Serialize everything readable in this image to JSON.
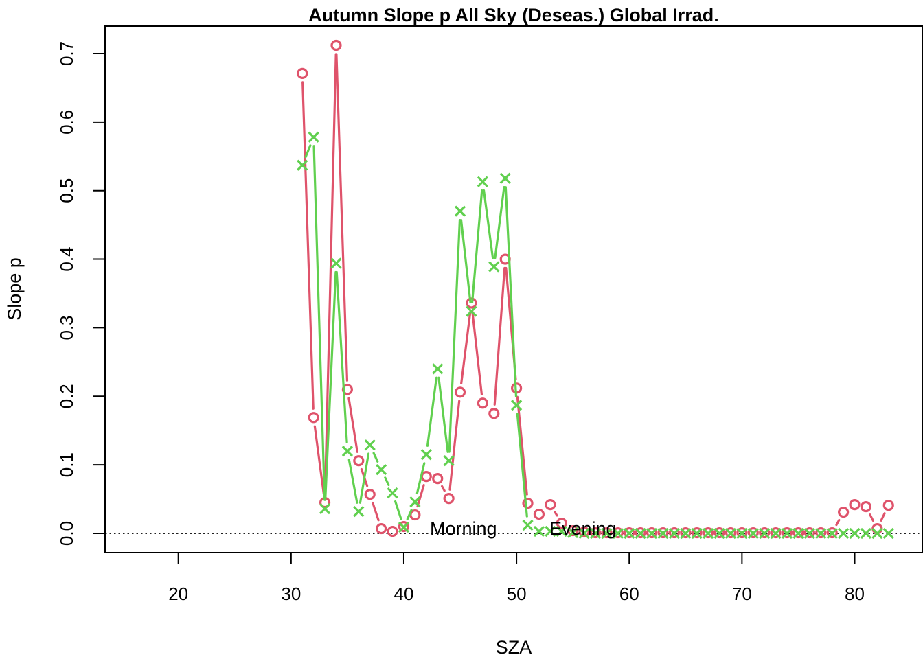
{
  "chart_data": {
    "type": "line",
    "title": "Autumn Slope p All Sky (Deseas.) Global Irrad.",
    "xlabel": "SZA",
    "ylabel": "Slope p",
    "xlim": [
      13.5,
      86
    ],
    "ylim": [
      -0.028,
      0.74
    ],
    "xticks": [
      20,
      30,
      40,
      50,
      60,
      70,
      80
    ],
    "yticks": [
      0.0,
      0.1,
      0.2,
      0.3,
      0.4,
      0.5,
      0.6,
      0.7
    ],
    "ytick_labels": [
      "0.0",
      "0.1",
      "0.2",
      "0.3",
      "0.4",
      "0.5",
      "0.6",
      "0.7"
    ],
    "reference_line": {
      "y": 0,
      "style": "dotted",
      "color": "#000000"
    },
    "legend": {
      "placement": "bottom-center",
      "entries": [
        "Morning",
        "Evening"
      ]
    },
    "series": [
      {
        "name": "Morning",
        "color": "#DF536B",
        "marker": "circle",
        "x": [
          31,
          32,
          33,
          34,
          35,
          36,
          37,
          38,
          39,
          40,
          41,
          42,
          43,
          44,
          45,
          46,
          47,
          48,
          49,
          50,
          51,
          52,
          53,
          54,
          55,
          56,
          57,
          58,
          59,
          60,
          61,
          62,
          63,
          64,
          65,
          66,
          67,
          68,
          69,
          70,
          71,
          72,
          73,
          74,
          75,
          76,
          77,
          78,
          79,
          80,
          81,
          82,
          83
        ],
        "values": [
          0.671,
          0.169,
          0.045,
          0.712,
          0.21,
          0.106,
          0.057,
          0.007,
          0.003,
          0.01,
          0.027,
          0.083,
          0.08,
          0.051,
          0.206,
          0.336,
          0.19,
          0.175,
          0.4,
          0.212,
          0.044,
          0.028,
          0.042,
          0.015,
          0.004,
          0.002,
          0.001,
          0.001,
          0.001,
          0.001,
          0.001,
          0.001,
          0.001,
          0.001,
          0.001,
          0.001,
          0.001,
          0.001,
          0.001,
          0.001,
          0.001,
          0.001,
          0.001,
          0.001,
          0.001,
          0.001,
          0.001,
          0.001,
          0.031,
          0.042,
          0.039,
          0.007,
          0.041
        ]
      },
      {
        "name": "Evening",
        "color": "#61D04F",
        "marker": "cross",
        "x": [
          31,
          32,
          33,
          34,
          35,
          36,
          37,
          38,
          39,
          40,
          41,
          42,
          43,
          44,
          45,
          46,
          47,
          48,
          49,
          50,
          51,
          52,
          53,
          54,
          55,
          56,
          57,
          58,
          59,
          60,
          61,
          62,
          63,
          64,
          65,
          66,
          67,
          68,
          69,
          70,
          71,
          72,
          73,
          74,
          75,
          76,
          77,
          78,
          79,
          80,
          81,
          82,
          83
        ],
        "values": [
          0.537,
          0.578,
          0.036,
          0.394,
          0.12,
          0.032,
          0.129,
          0.093,
          0.059,
          0.009,
          0.046,
          0.115,
          0.24,
          0.106,
          0.47,
          0.324,
          0.513,
          0.389,
          0.518,
          0.187,
          0.012,
          0.003,
          0.003,
          0.003,
          0.001,
          0.0,
          0.0,
          0.0,
          0.0,
          0.0,
          0.0,
          0.0,
          0.0,
          0.0,
          0.0,
          0.0,
          0.0,
          0.0,
          0.0,
          0.0,
          0.0,
          0.0,
          0.0,
          0.0,
          0.0,
          0.0,
          0.0,
          0.0,
          0.0,
          0.0,
          0.0,
          0.0,
          0.0
        ]
      }
    ]
  }
}
